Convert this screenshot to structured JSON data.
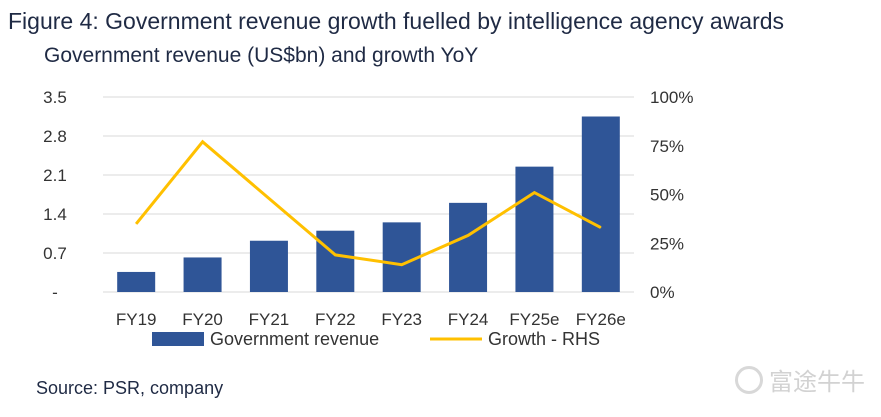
{
  "figure": {
    "title": "Figure 4: Government revenue growth fuelled by intelligence agency awards",
    "subtitle": "Government revenue (US$bn) and growth YoY",
    "source": "Source: PSR, company",
    "watermark": "富途牛牛"
  },
  "colors": {
    "bar": "#2f5597",
    "line": "#ffc000",
    "grid": "#d9d9d9"
  },
  "chart_data": {
    "type": "bar",
    "categories": [
      "FY19",
      "FY20",
      "FY21",
      "FY22",
      "FY23",
      "FY24",
      "FY25e",
      "FY26e"
    ],
    "series": [
      {
        "name": "Government revenue",
        "type": "bar",
        "axis": "left",
        "values": [
          0.36,
          0.62,
          0.92,
          1.1,
          1.25,
          1.6,
          2.25,
          3.15
        ]
      },
      {
        "name": "Growth - RHS",
        "type": "line",
        "axis": "right",
        "values": [
          35,
          77,
          48,
          19,
          14,
          29,
          51,
          33
        ]
      }
    ],
    "y_left": {
      "ylim": [
        0,
        3.5
      ],
      "ticks": [
        "-",
        "0.7",
        "1.4",
        "2.1",
        "2.8",
        "3.5"
      ]
    },
    "y_right": {
      "ylim": [
        0,
        100
      ],
      "ticks": [
        "0%",
        "25%",
        "50%",
        "75%",
        "100%"
      ]
    },
    "grid": true,
    "legend_position": "bottom"
  }
}
